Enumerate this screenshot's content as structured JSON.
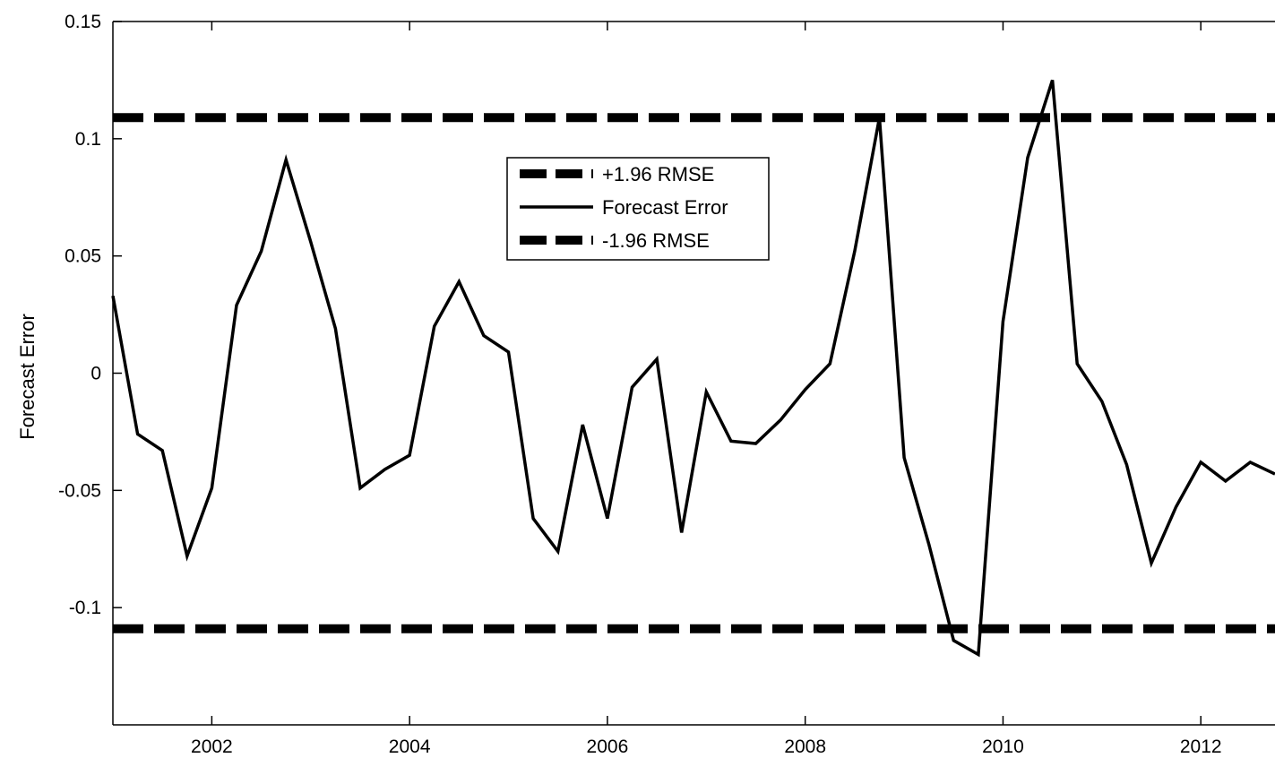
{
  "chart_data": {
    "type": "line",
    "title": "",
    "xlabel": "",
    "ylabel": "Forecast Error",
    "xlim": [
      2001.0,
      2012.75
    ],
    "ylim": [
      -0.15,
      0.15
    ],
    "x_ticks": [
      2002,
      2004,
      2006,
      2008,
      2010,
      2012
    ],
    "y_ticks": [
      0.15,
      0.1,
      0.05,
      0,
      -0.05,
      -0.1
    ],
    "y_tick_labels": [
      "0.15",
      "0.1",
      "0.05",
      "0",
      "-0.05",
      "-0.1"
    ],
    "grid": false,
    "legend_position": "upper-center",
    "series": [
      {
        "name": "+1.96 RMSE",
        "style": "dashed",
        "color": "#000000",
        "x": [
          2001.0,
          2012.75
        ],
        "values": [
          0.109,
          0.109
        ]
      },
      {
        "name": "Forecast Error",
        "style": "solid",
        "color": "#000000",
        "x": [
          2001.0,
          2001.25,
          2001.5,
          2001.75,
          2002.0,
          2002.25,
          2002.5,
          2002.75,
          2003.0,
          2003.25,
          2003.5,
          2003.75,
          2004.0,
          2004.25,
          2004.5,
          2004.75,
          2005.0,
          2005.25,
          2005.5,
          2005.75,
          2006.0,
          2006.25,
          2006.5,
          2006.75,
          2007.0,
          2007.25,
          2007.5,
          2007.75,
          2008.0,
          2008.25,
          2008.5,
          2008.75,
          2009.0,
          2009.25,
          2009.5,
          2009.75,
          2010.0,
          2010.25,
          2010.5,
          2010.75,
          2011.0,
          2011.25,
          2011.5,
          2011.75,
          2012.0,
          2012.25,
          2012.5,
          2012.75
        ],
        "values": [
          0.033,
          -0.026,
          -0.033,
          -0.078,
          -0.049,
          0.029,
          0.052,
          0.091,
          0.056,
          0.019,
          -0.049,
          -0.041,
          -0.035,
          0.02,
          0.039,
          0.016,
          0.009,
          -0.062,
          -0.076,
          -0.022,
          -0.062,
          -0.006,
          0.006,
          -0.068,
          -0.008,
          -0.029,
          -0.03,
          -0.02,
          -0.007,
          0.004,
          0.052,
          0.109,
          -0.036,
          -0.073,
          -0.114,
          -0.12,
          0.022,
          0.092,
          0.125,
          0.004,
          -0.012,
          -0.039,
          -0.081,
          -0.057,
          -0.038,
          -0.046,
          -0.038,
          -0.043
        ]
      },
      {
        "name": "-1.96 RMSE",
        "style": "dashed",
        "color": "#000000",
        "x": [
          2001.0,
          2012.75
        ],
        "values": [
          -0.109,
          -0.109
        ]
      }
    ]
  }
}
